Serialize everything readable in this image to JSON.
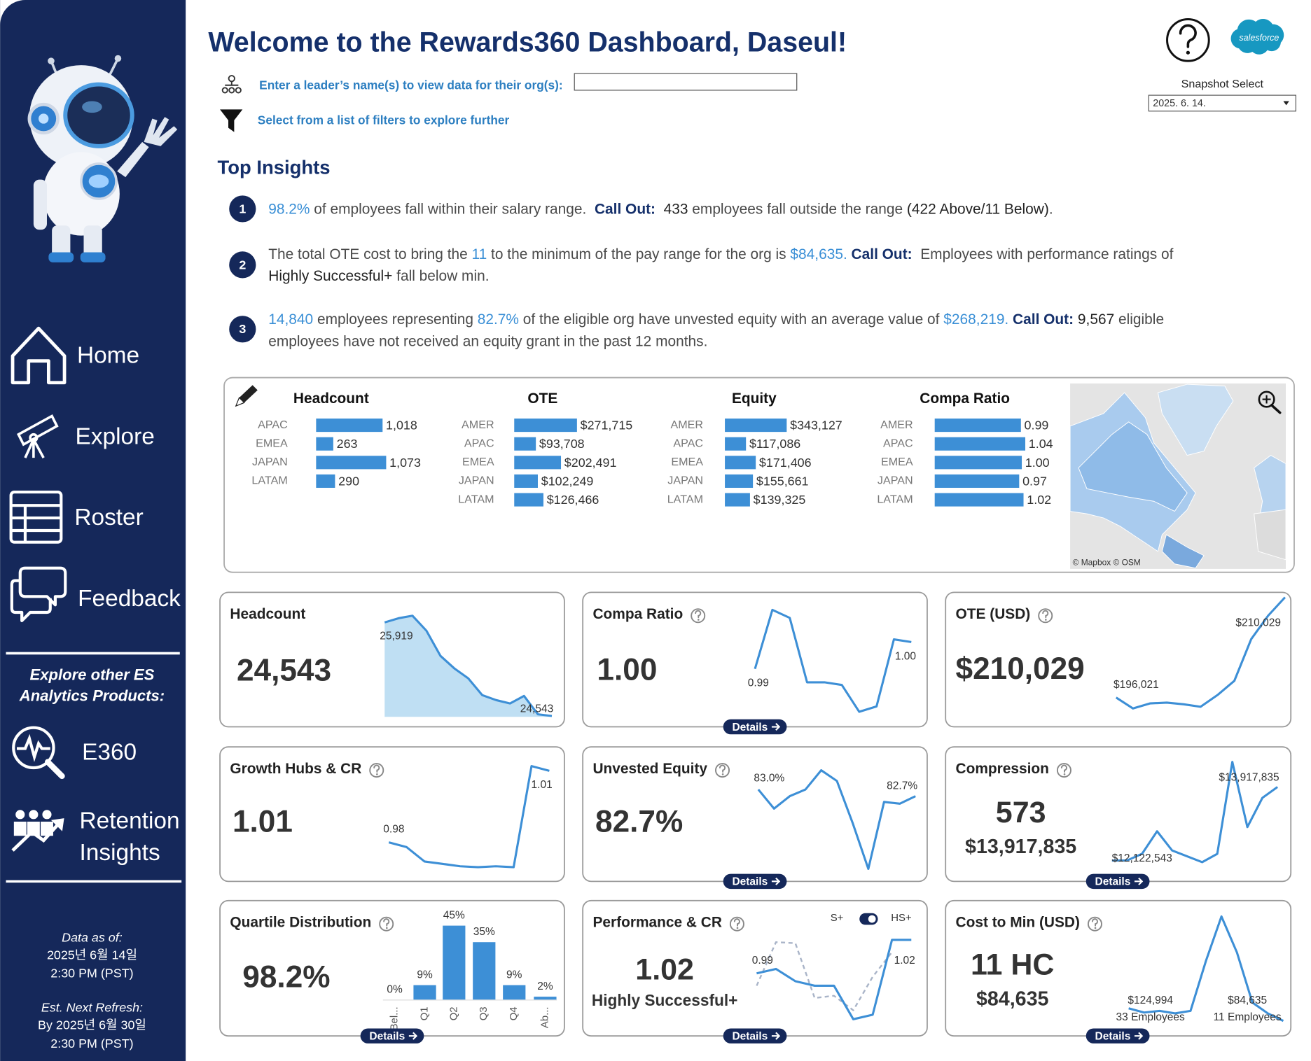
{
  "header": {
    "title": "Welcome to the Rewards360 Dashboard, Daseul!",
    "leader_prompt": "Enter a leader’s name(s) to view data for their org(s):",
    "filter_prompt": "Select from a list of filters to explore further",
    "logo_text": "salesforce",
    "snapshot_label": "Snapshot Select",
    "snapshot_value": "2025. 6. 14."
  },
  "sidebar": {
    "nav": [
      "Home",
      "Explore",
      "Roster",
      "Feedback"
    ],
    "products_heading": [
      "Explore other ES",
      "Analytics Products:"
    ],
    "products": [
      {
        "lines": [
          "E360"
        ]
      },
      {
        "lines": [
          "Retention",
          "Insights"
        ]
      }
    ],
    "refresh": [
      {
        "label": "Data as of:",
        "lines": [
          "2025년 6월 14일",
          "2:30 PM (PST)"
        ]
      },
      {
        "label": "Est. Next Refresh:",
        "lines": [
          "By 2025년 6월 30일",
          "2:30 PM (PST)"
        ]
      }
    ]
  },
  "insights": {
    "title": "Top Insights",
    "items": [
      {
        "number": "1",
        "lines": [
          [
            {
              "text": "98.2%",
              "style": "accent"
            },
            {
              "text": " of employees fall within their salary range.  ",
              "style": "plain"
            },
            {
              "text": "Call Out:",
              "style": "callout"
            },
            {
              "text": "  ",
              "style": "plain"
            },
            {
              "text": "433",
              "style": "strong"
            },
            {
              "text": " employees fall outside the range ",
              "style": "plain"
            },
            {
              "text": "(422 Above/11 Below)",
              "style": "strong"
            },
            {
              "text": ".",
              "style": "plain"
            }
          ]
        ]
      },
      {
        "number": "2",
        "lines": [
          [
            {
              "text": "The total OTE cost to bring the ",
              "style": "plain"
            },
            {
              "text": "11",
              "style": "accent"
            },
            {
              "text": " to the minimum of the pay range for the org is ",
              "style": "plain"
            },
            {
              "text": "$84,635.",
              "style": "accent"
            },
            {
              "text": " Call Out:",
              "style": "callout"
            },
            {
              "text": "  Employees with performance ratings of",
              "style": "plain"
            }
          ],
          [
            {
              "text": "Highly Successful+",
              "style": "strong"
            },
            {
              "text": " fall below min.",
              "style": "plain"
            }
          ]
        ]
      },
      {
        "number": "3",
        "lines": [
          [
            {
              "text": "14,840",
              "style": "accent"
            },
            {
              "text": " employees representing ",
              "style": "plain"
            },
            {
              "text": "82.7%",
              "style": "accent"
            },
            {
              "text": " of the eligible org have unvested equity with an average value of ",
              "style": "plain"
            },
            {
              "text": "$268,219.",
              "style": "accent"
            },
            {
              "text": " Call Out:",
              "style": "callout"
            },
            {
              "text": " ",
              "style": "plain"
            },
            {
              "text": "9,567",
              "style": "strong"
            },
            {
              "text": " eligible",
              "style": "plain"
            }
          ],
          [
            {
              "text": "employees have not received an equity grant in the past 12 months.",
              "style": "plain"
            }
          ]
        ]
      }
    ]
  },
  "summary": {
    "charts": [
      {
        "type": "bar",
        "title": "Headcount",
        "categories": [
          "APAC",
          "EMEA",
          "JAPAN",
          "LATAM"
        ],
        "values": [
          1018,
          263,
          1073,
          290
        ],
        "value_labels": [
          "1,018",
          "263",
          "1,073",
          "290"
        ],
        "xlim": [
          0,
          1280
        ]
      },
      {
        "type": "bar",
        "title": "OTE",
        "categories": [
          "AMER",
          "APAC",
          "EMEA",
          "JAPAN",
          "LATAM"
        ],
        "values": [
          271715,
          93708,
          202491,
          102249,
          126466
        ],
        "value_labels": [
          "$271,715",
          "$93,708",
          "$202,491",
          "$102,249",
          "$126,466"
        ],
        "xlim": [
          0,
          362000
        ]
      },
      {
        "type": "bar",
        "title": "Equity",
        "categories": [
          "AMER",
          "APAC",
          "EMEA",
          "JAPAN",
          "LATAM"
        ],
        "values": [
          343127,
          117086,
          171406,
          155661,
          139325
        ],
        "value_labels": [
          "$343,127",
          "$117,086",
          "$171,406",
          "$155,661",
          "$139,325"
        ],
        "xlim": [
          0,
          464000
        ]
      },
      {
        "type": "bar",
        "title": "Compa Ratio",
        "categories": [
          "AMER",
          "APAC",
          "EMEA",
          "JAPAN",
          "LATAM"
        ],
        "values": [
          0.99,
          1.04,
          1.0,
          0.97,
          1.02
        ],
        "value_labels": [
          "0.99",
          "1.04",
          "1.00",
          "0.97",
          "1.02"
        ],
        "xlim": [
          0,
          0.96
        ]
      }
    ],
    "map_credit": "© Mapbox © OSM"
  },
  "cards": [
    {
      "title": "Headcount",
      "help": false,
      "kpi": [
        "24,543"
      ],
      "trend": {
        "type": "area",
        "values": [
          25919,
          25980,
          26017,
          25796,
          25427,
          25243,
          25096,
          24850,
          24776,
          24727,
          24838,
          24567,
          24543
        ],
        "start_label": "25,919",
        "end_label": "24,543"
      }
    },
    {
      "title": "Compa Ratio",
      "help": true,
      "kpi": [
        "1.00"
      ],
      "button": "Details",
      "trend": {
        "type": "line",
        "values": [
          0.99,
          1.012,
          1.009,
          0.985,
          0.985,
          0.984,
          0.974,
          0.976,
          1.001,
          1.0
        ],
        "start_label": "0.99",
        "end_label": "1.00"
      }
    },
    {
      "title": "OTE (USD)",
      "help": true,
      "kpi": [
        "$210,029"
      ],
      "trend": {
        "type": "line",
        "values": [
          196021,
          194504,
          195204,
          195320,
          195087,
          194737,
          196371,
          198355,
          204190,
          207458,
          210029
        ],
        "start_label": "$196,021",
        "end_label": "$210,029"
      }
    },
    {
      "title": "Growth Hubs & CR",
      "help": true,
      "kpi": [
        "1.01"
      ],
      "trend": {
        "type": "line",
        "values": [
          0.98,
          0.978,
          0.972,
          0.971,
          0.97,
          0.9696,
          0.97,
          0.9696,
          1.012,
          1.01
        ],
        "start_label": "0.98",
        "end_label": "1.01"
      }
    },
    {
      "title": "Unvested Equity",
      "help": true,
      "kpi": [
        "82.7%"
      ],
      "button": "Details",
      "trend": {
        "type": "line",
        "values": [
          83.0,
          82.14,
          82.7,
          83.0,
          83.86,
          83.38,
          81.5,
          79.44,
          82.44,
          82.36,
          82.7
        ],
        "start_label": "83.0%",
        "end_label": "82.7%"
      }
    },
    {
      "title": "Compression",
      "help": true,
      "kpi": [
        "573",
        "$13,917,835"
      ],
      "button": "Details",
      "trend": {
        "type": "line",
        "values": [
          12122543,
          12122543,
          12285750,
          12836580,
          12367360,
          12224550,
          12081740,
          12285750,
          14529860,
          12938560,
          13652590,
          13917835
        ],
        "start_label": "$12,122,543",
        "end_label": "$13,917,835"
      }
    },
    {
      "title": "Quartile Distribution",
      "help": true,
      "kpi": [
        "98.2%"
      ],
      "button": "Details",
      "bars": {
        "type": "bar",
        "categories": [
          "Bel...",
          "Q1",
          "Q2",
          "Q3",
          "Q4",
          "Ab..."
        ],
        "values": [
          0,
          9,
          45,
          35,
          9,
          2
        ],
        "value_labels": [
          "0%",
          "9%",
          "45%",
          "35%",
          "9%",
          "2%"
        ],
        "ylim": [
          0,
          46
        ]
      }
    },
    {
      "title": "Performance & CR",
      "help": true,
      "kpi": [
        "1.02",
        "Highly Successful+"
      ],
      "button": "Details",
      "trend": {
        "type": "line",
        "series": [
          {
            "name": "S+",
            "dash": true,
            "color": "#a9b4c8",
            "values": [
              0.979,
              1.018,
              1.017,
              0.968,
              0.97,
              0.957,
              0.987,
              1.009
            ]
          },
          {
            "name": "HS+",
            "dash": false,
            "color": "#3d8fd6",
            "values": [
              0.99,
              0.994,
              0.983,
              0.979,
              0.979,
              0.949,
              0.953,
              1.02,
              1.02
            ]
          }
        ],
        "start_label": "0.99",
        "end_label": "1.02"
      }
    },
    {
      "title": "Cost to Min (USD)",
      "help": true,
      "kpi": [
        "11 HC",
        "$84,635"
      ],
      "button": "Details",
      "trend": {
        "type": "line",
        "values": [
          124994,
          111543,
          116924,
          108854,
          116924,
          278327,
          420900,
          305230,
          143825,
          108854,
          84635
        ],
        "start_label": "$124,994",
        "start_note": "33 Employees",
        "end_label": "$84,635",
        "end_note": "11 Employees"
      }
    }
  ]
}
